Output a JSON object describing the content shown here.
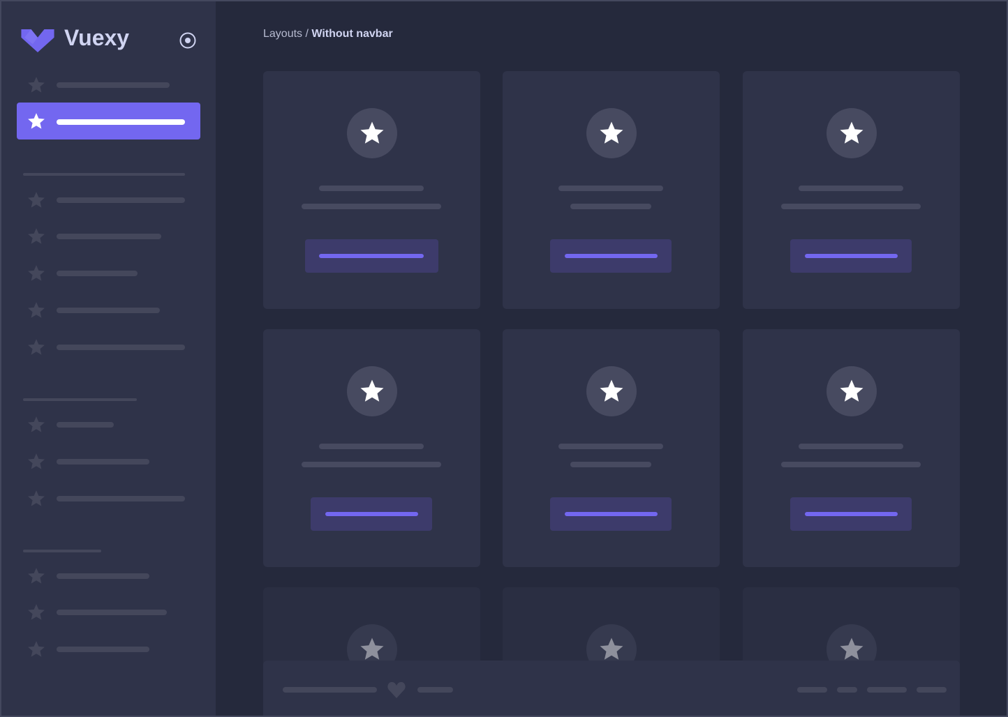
{
  "brand": {
    "name": "Vuexy",
    "color": "#7367f0"
  },
  "breadcrumb": {
    "parent": "Layouts",
    "separator": " / ",
    "current": "Without navbar"
  },
  "colors": {
    "primary": "#7367f0",
    "background": "#25293c",
    "surface": "#2f3349",
    "skeleton": "#44475b"
  },
  "icons": {
    "logo": "vuexy-logo-icon",
    "menu_toggle": "radio-circle-icon",
    "item": "star-icon",
    "footer": "heart-icon"
  }
}
